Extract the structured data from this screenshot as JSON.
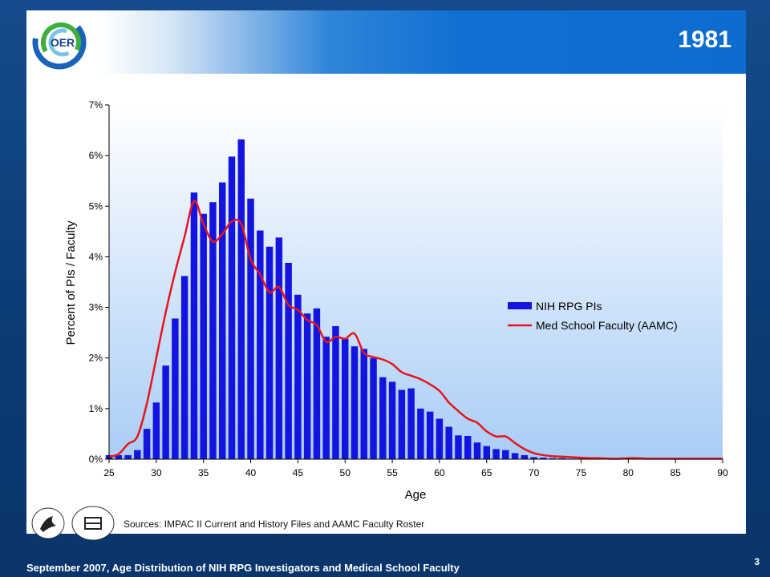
{
  "slide": {
    "title": "1981",
    "page_number": "3",
    "footer_text": "September 2007, Age Distribution of NIH RPG Investigators and Medical School Faculty",
    "sources_text": "Sources:  IMPAC II Current  and History Files and AAMC Faculty Roster",
    "logo_text": "OER"
  },
  "colors": {
    "bar": "#1414e0",
    "line": "#e8141e",
    "plot_bg_top": "#ffffff",
    "plot_bg_bottom": "#a9cdf6"
  },
  "chart_data": {
    "type": "bar",
    "title": "",
    "xlabel": "Age",
    "ylabel": "Percent of PIs / Faculty",
    "xlim": [
      25,
      90
    ],
    "ylim": [
      0,
      7
    ],
    "x_ticks": [
      25,
      30,
      35,
      40,
      45,
      50,
      55,
      60,
      65,
      70,
      75,
      80,
      85,
      90
    ],
    "y_ticks": [
      "0%",
      "1%",
      "2%",
      "3%",
      "4%",
      "5%",
      "6%",
      "7%"
    ],
    "legend_position": "center-right",
    "series": [
      {
        "name": "NIH RPG PIs",
        "kind": "bar",
        "x": [
          25,
          26,
          27,
          28,
          29,
          30,
          31,
          32,
          33,
          34,
          35,
          36,
          37,
          38,
          39,
          40,
          41,
          42,
          43,
          44,
          45,
          46,
          47,
          48,
          49,
          50,
          51,
          52,
          53,
          54,
          55,
          56,
          57,
          58,
          59,
          60,
          61,
          62,
          63,
          64,
          65,
          66,
          67,
          68,
          69,
          70,
          71,
          72,
          73,
          74,
          75
        ],
        "values": [
          0.08,
          0.08,
          0.08,
          0.18,
          0.6,
          1.12,
          1.85,
          2.78,
          3.62,
          5.27,
          4.85,
          5.08,
          5.47,
          5.98,
          6.32,
          5.15,
          4.52,
          4.2,
          4.38,
          3.88,
          3.25,
          2.88,
          2.98,
          2.42,
          2.63,
          2.38,
          2.23,
          2.18,
          2.0,
          1.62,
          1.53,
          1.37,
          1.4,
          1.0,
          0.94,
          0.8,
          0.64,
          0.47,
          0.46,
          0.33,
          0.26,
          0.2,
          0.18,
          0.12,
          0.08,
          0.04,
          0.03,
          0.02,
          0.02,
          0.01,
          0.01
        ]
      },
      {
        "name": "Med School Faculty (AAMC)",
        "kind": "line",
        "x": [
          25,
          26,
          27,
          28,
          29,
          30,
          31,
          32,
          33,
          34,
          35,
          36,
          37,
          38,
          39,
          40,
          41,
          42,
          43,
          44,
          45,
          46,
          47,
          48,
          49,
          50,
          51,
          52,
          53,
          54,
          55,
          56,
          57,
          58,
          59,
          60,
          61,
          62,
          63,
          64,
          65,
          66,
          67,
          68,
          69,
          70,
          71,
          72,
          73,
          74,
          75,
          76,
          77,
          78,
          79,
          80,
          81,
          82,
          83,
          84,
          85,
          86,
          87,
          88,
          89,
          90
        ],
        "values": [
          0.05,
          0.1,
          0.3,
          0.45,
          1.1,
          2.0,
          2.9,
          3.7,
          4.4,
          5.1,
          4.65,
          4.3,
          4.45,
          4.7,
          4.65,
          3.95,
          3.65,
          3.3,
          3.4,
          3.05,
          2.95,
          2.75,
          2.65,
          2.32,
          2.42,
          2.38,
          2.48,
          2.1,
          2.02,
          1.97,
          1.88,
          1.72,
          1.65,
          1.58,
          1.48,
          1.35,
          1.12,
          0.95,
          0.8,
          0.72,
          0.55,
          0.45,
          0.45,
          0.32,
          0.2,
          0.12,
          0.08,
          0.06,
          0.05,
          0.04,
          0.03,
          0.02,
          0.02,
          0.01,
          0.01,
          0.02,
          0.02,
          0.01,
          0.01,
          0.01,
          0.01,
          0.01,
          0.01,
          0.01,
          0.01,
          0.01
        ]
      }
    ]
  }
}
